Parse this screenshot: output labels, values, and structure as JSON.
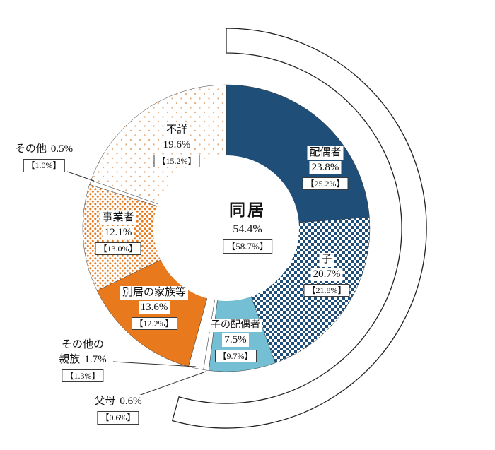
{
  "chart_data": {
    "type": "pie",
    "variant": "donut-with-group-arc",
    "title": "",
    "legend_position": "none",
    "center": {
      "label": "同居",
      "value": "54.4%",
      "prev": "【58.7%】"
    },
    "group_arc": {
      "label": "同居",
      "percent": 54.4
    },
    "segments": [
      {
        "label": "配偶者",
        "value": 23.8,
        "value_text": "23.8%",
        "prev_text": "【25.2%】",
        "style": "navy-solid"
      },
      {
        "label": "子",
        "value": 20.7,
        "value_text": "20.7%",
        "prev_text": "【21.8%】",
        "style": "navy-checker"
      },
      {
        "label": "子の配偶者",
        "value": 7.5,
        "value_text": "7.5%",
        "prev_text": "【9.7%】",
        "style": "lightblue-solid"
      },
      {
        "label": "父母",
        "value": 0.6,
        "value_text": "0.6%",
        "prev_text": "【0.6%】",
        "style": "white"
      },
      {
        "label": "その他の親族",
        "label_line1": "その他の",
        "label_line2": "親族",
        "value": 1.7,
        "value_text": "1.7%",
        "prev_text": "【1.3%】",
        "style": "white"
      },
      {
        "label": "別居の家族等",
        "value": 13.6,
        "value_text": "13.6%",
        "prev_text": "【12.2%】",
        "style": "orange-solid"
      },
      {
        "label": "事業者",
        "value": 12.1,
        "value_text": "12.1%",
        "prev_text": "【13.0%】",
        "style": "orange-dots"
      },
      {
        "label": "その他",
        "value": 0.5,
        "value_text": "0.5%",
        "prev_text": "【1.0%】",
        "style": "white"
      },
      {
        "label": "不詳",
        "value": 19.6,
        "value_text": "19.6%",
        "prev_text": "【15.2%】",
        "style": "dot-sparse"
      }
    ],
    "colors": {
      "navy": "#1F4E79",
      "lightblue": "#74BFD4",
      "orange": "#E8791C",
      "dot_tan": "#E5B287",
      "outline": "#3a3a3a"
    }
  }
}
